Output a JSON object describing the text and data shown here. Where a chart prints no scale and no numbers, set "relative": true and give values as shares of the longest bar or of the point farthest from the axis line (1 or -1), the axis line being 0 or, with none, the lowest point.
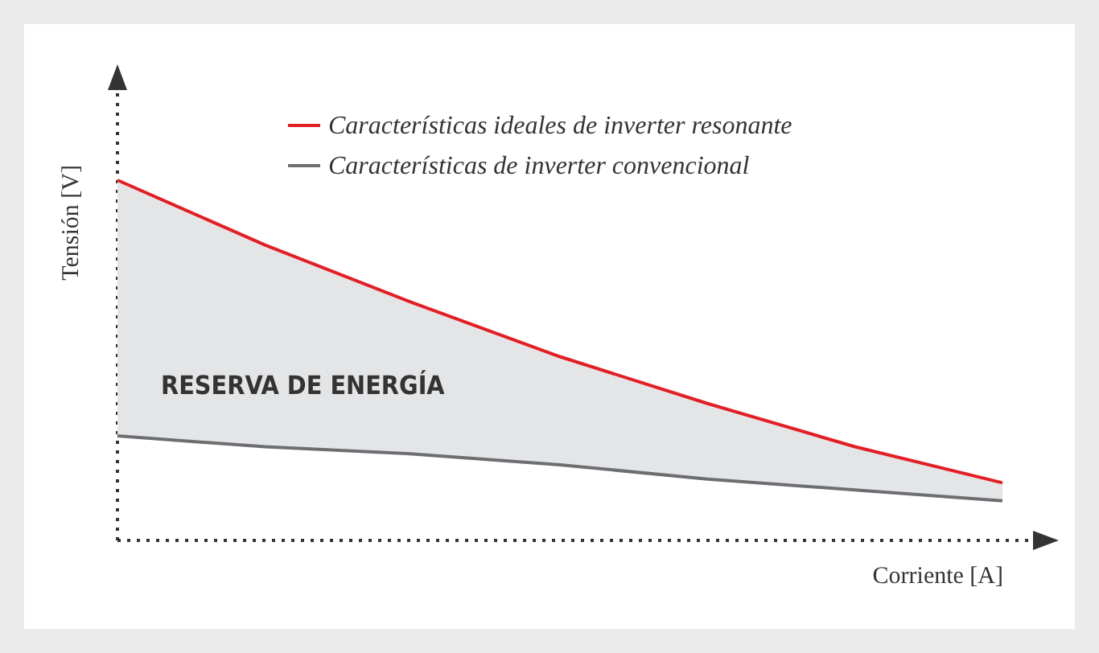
{
  "chart_data": {
    "type": "line",
    "relative": true,
    "xlabel": "Corriente [A]",
    "ylabel": "Tensión [V]",
    "legend": "top right",
    "categories": [
      null,
      null,
      null,
      null,
      null,
      null,
      null
    ],
    "series": [
      {
        "name": "Características ideales de inverter resonante",
        "color": "#e31e24",
        "values": [
          1,
          0.82,
          0.66,
          0.51,
          0.38,
          0.26,
          0.16
        ],
        "lower": [
          0.29,
          0.26,
          0.24,
          0.21,
          0.17,
          0.14,
          0.11
        ],
        "upper": [
          1,
          0.82,
          0.66,
          0.51,
          0.38,
          0.26,
          0.16
        ]
      },
      {
        "name": "Características de inverter convencional",
        "color": "#6d6e71",
        "values": [
          0.29,
          0.26,
          0.24,
          0.21,
          0.17,
          0.14,
          0.11
        ]
      }
    ],
    "annotations": [
      "RESERVA DE ENERGÍA"
    ]
  }
}
